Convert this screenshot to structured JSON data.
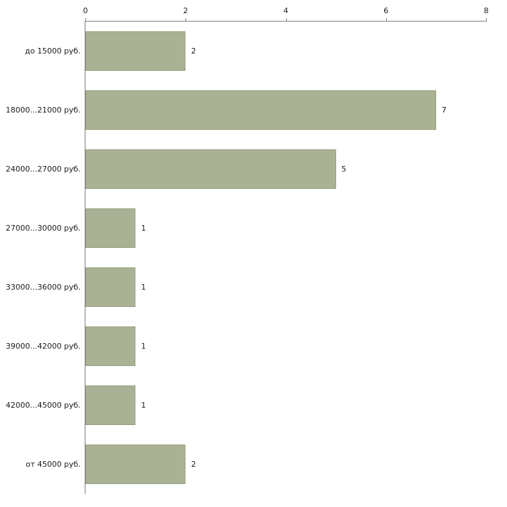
{
  "chart_data": {
    "type": "bar",
    "orientation": "horizontal",
    "title": "",
    "xlabel": "",
    "ylabel": "",
    "categories": [
      "до 15000 руб.",
      "18000...21000 руб.",
      "24000...27000 руб.",
      "27000...30000 руб.",
      "33000...36000 руб.",
      "39000...42000 руб.",
      "42000...45000 руб.",
      "от 45000 руб."
    ],
    "values": [
      2,
      7,
      5,
      1,
      1,
      1,
      1,
      2
    ],
    "xlim": [
      0,
      8
    ],
    "x_ticks": [
      0,
      2,
      4,
      6,
      8
    ],
    "grid": false,
    "legend": false,
    "value_labels": true,
    "bar_color": "#a9b294",
    "bar_border_color": "#99a383",
    "axis_color": "#7f7f7f",
    "text_color": "#1a1a1a",
    "background_color": "#ffffff"
  }
}
